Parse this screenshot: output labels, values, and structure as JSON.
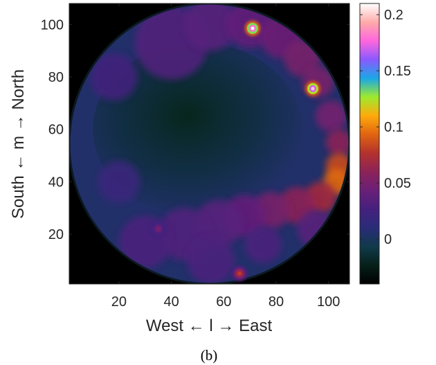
{
  "chart_data": {
    "type": "heatmap",
    "xlabel": "West ← l → East",
    "ylabel": "South ← m → North",
    "caption": "(b)",
    "xlim": [
      1,
      108
    ],
    "ylim": [
      1,
      108
    ],
    "xticks": [
      20,
      40,
      60,
      80,
      100
    ],
    "yticks": [
      20,
      40,
      60,
      80,
      100
    ],
    "colorbar": {
      "range": [
        -0.04,
        0.21
      ],
      "ticks": [
        0,
        0.05,
        0.1,
        0.15,
        0.2
      ],
      "tick_labels": [
        "0",
        "0.05",
        "0.1",
        "0.15",
        "0.2"
      ],
      "colormap": [
        "#000000",
        "#06201a",
        "#103a4a",
        "#2a2c78",
        "#45207e",
        "#6a1f78",
        "#8c2358",
        "#b4322d",
        "#e06410",
        "#ffaa0c",
        "#9dea2e",
        "#1aa8e6",
        "#8a5aff",
        "#ff66dd",
        "#ffaaaa",
        "#ffffff"
      ]
    },
    "disk": {
      "center": [
        54.5,
        54.5
      ],
      "radius": 53.5
    },
    "features": [
      {
        "type": "arc",
        "note": "bright emission rim along east/north-east edge"
      },
      {
        "type": "point",
        "l": 71,
        "m": 98.5,
        "value": 0.21
      },
      {
        "type": "point",
        "l": 94,
        "m": 75.5,
        "value": 0.2
      },
      {
        "type": "point",
        "l": 35,
        "m": 22,
        "value": 0.05
      },
      {
        "type": "point",
        "l": 66,
        "m": 5,
        "value": 0.08
      }
    ]
  }
}
